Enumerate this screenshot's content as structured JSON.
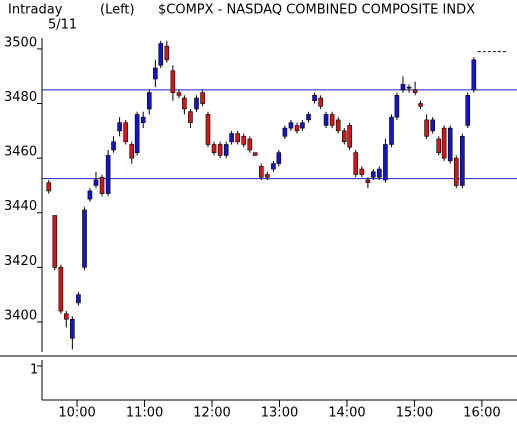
{
  "chart_data": {
    "type": "candlestick",
    "title": "$COMPX - NASDAQ COMBINED COMPOSITE INDX",
    "subtitle": "Intraday",
    "axis_label": "(Left)",
    "date_label": "5/11",
    "up_color": "#1414c8",
    "down_color": "#d01818",
    "hline_color": "#2020c0",
    "hlines": [
      3485,
      3452.5
    ],
    "last_price": 3499,
    "xlim": [
      9.48,
      16.52
    ],
    "xticks": [
      {
        "value": 10,
        "label": "10:00"
      },
      {
        "value": 11,
        "label": "11:00"
      },
      {
        "value": 12,
        "label": "12:00"
      },
      {
        "value": 13,
        "label": "13:00"
      },
      {
        "value": 14,
        "label": "14:00"
      },
      {
        "value": 15,
        "label": "15:00"
      },
      {
        "value": 16,
        "label": "16:00"
      }
    ],
    "ylim": [
      3389,
      3504
    ],
    "yticks": [
      3400,
      3420,
      3440,
      3460,
      3480,
      3500
    ],
    "lower_panel_yticks": [
      1
    ],
    "x": [
      9.58,
      9.67,
      9.76,
      9.84,
      9.93,
      10.02,
      10.11,
      10.19,
      10.28,
      10.37,
      10.46,
      10.54,
      10.63,
      10.72,
      10.81,
      10.89,
      10.98,
      11.07,
      11.16,
      11.24,
      11.33,
      11.42,
      11.51,
      11.59,
      11.68,
      11.77,
      11.86,
      11.94,
      12.03,
      12.12,
      12.21,
      12.29,
      12.38,
      12.47,
      12.56,
      12.64,
      12.73,
      12.82,
      12.91,
      12.99,
      13.08,
      13.17,
      13.26,
      13.34,
      13.43,
      13.52,
      13.61,
      13.69,
      13.78,
      13.87,
      13.96,
      14.04,
      14.13,
      14.22,
      14.31,
      14.39,
      14.48,
      14.57,
      14.66,
      14.74,
      14.83,
      14.92,
      15.01,
      15.09,
      15.18,
      15.27,
      15.36,
      15.44,
      15.53,
      15.62,
      15.71,
      15.79,
      15.88
    ],
    "open": [
      3451,
      3439,
      3420,
      3403,
      3394,
      3407,
      3420,
      3445,
      3450,
      3453,
      3447,
      3463,
      3470,
      3473,
      3465,
      3462,
      3473,
      3478,
      3489,
      3494,
      3501,
      3492,
      3484,
      3482,
      3477,
      3478,
      3484,
      3476,
      3465,
      3465,
      3461,
      3466,
      3469,
      3468,
      3467,
      3462,
      3457,
      3454,
      3456,
      3458,
      3468,
      3471,
      3472,
      3471,
      3474,
      3481,
      3482,
      3472,
      3476,
      3474,
      3470,
      3472,
      3462,
      3456,
      3452,
      3453,
      3453,
      3452,
      3465,
      3475,
      3485,
      3486,
      3485,
      3480,
      3474,
      3470,
      3467,
      3471,
      3459,
      3460,
      3450,
      3472,
      3485
    ],
    "high": [
      3452,
      3439,
      3421,
      3404,
      3402,
      3411,
      3442,
      3449,
      3455,
      3454,
      3463,
      3468,
      3475,
      3474,
      3466,
      3477,
      3477,
      3485,
      3496,
      3503,
      3503,
      3494,
      3485,
      3483,
      3478,
      3483,
      3485,
      3477,
      3466,
      3466,
      3466,
      3470,
      3470,
      3469,
      3468,
      3462,
      3458,
      3455,
      3459,
      3463,
      3472,
      3474,
      3473,
      3474,
      3477,
      3484,
      3483,
      3477,
      3477,
      3475,
      3471,
      3473,
      3463,
      3457,
      3453,
      3456,
      3457,
      3467,
      3476,
      3484,
      3490,
      3487,
      3488,
      3481,
      3476,
      3475,
      3468,
      3472,
      3472,
      3461,
      3469,
      3484,
      3497
    ],
    "low": [
      3447,
      3419,
      3403,
      3398,
      3390,
      3406,
      3419,
      3444,
      3449,
      3446,
      3446,
      3462,
      3468,
      3465,
      3458,
      3461,
      3471,
      3476,
      3486,
      3493,
      3495,
      3481,
      3482,
      3476,
      3471,
      3477,
      3479,
      3464,
      3461,
      3460,
      3460,
      3465,
      3465,
      3464,
      3462,
      3461,
      3452,
      3452,
      3455,
      3457,
      3467,
      3470,
      3469,
      3470,
      3473,
      3480,
      3478,
      3471,
      3471,
      3469,
      3465,
      3463,
      3453,
      3453,
      3449,
      3452,
      3452,
      3451,
      3464,
      3474,
      3484,
      3484,
      3483,
      3478,
      3467,
      3469,
      3461,
      3459,
      3458,
      3449,
      3449,
      3471,
      3484
    ],
    "close": [
      3448,
      3420,
      3404,
      3401,
      3401,
      3410,
      3441,
      3448,
      3452,
      3447,
      3461,
      3466,
      3473,
      3466,
      3460,
      3476,
      3475,
      3484,
      3493,
      3502,
      3496,
      3484,
      3483,
      3478,
      3473,
      3482,
      3480,
      3465,
      3462,
      3461,
      3465,
      3469,
      3466,
      3465,
      3463,
      3461,
      3453,
      3453,
      3458,
      3462,
      3471,
      3473,
      3470,
      3473,
      3476,
      3483,
      3479,
      3476,
      3472,
      3470,
      3466,
      3464,
      3454,
      3454,
      3451,
      3455,
      3456,
      3465,
      3475,
      3483,
      3487,
      3486,
      3484,
      3479,
      3468,
      3474,
      3462,
      3460,
      3471,
      3450,
      3468,
      3483,
      3496
    ]
  }
}
